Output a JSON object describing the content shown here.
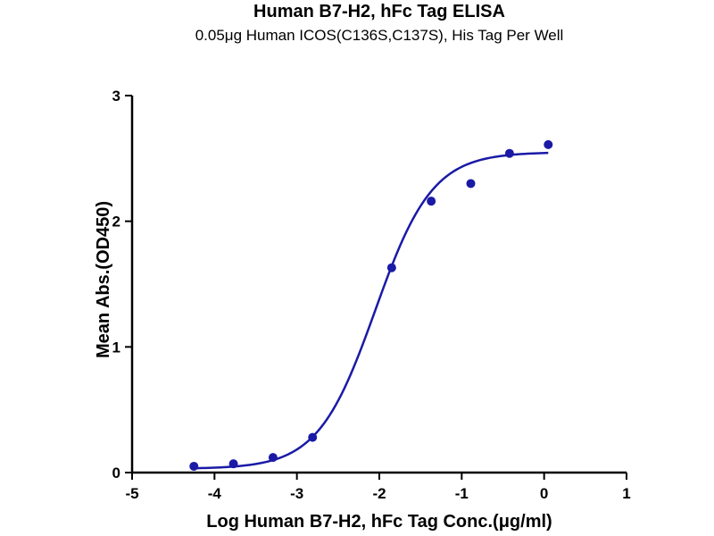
{
  "chart_data": {
    "type": "scatter",
    "title": "Human B7-H2, hFc Tag ELISA",
    "subtitle": "0.05μg Human ICOS(C136S,C137S), His Tag Per Well",
    "xlabel": "Log Human B7-H2, hFc Tag Conc.(μg/ml)",
    "ylabel": "Mean Abs.(OD450)",
    "xlim": [
      -5,
      1
    ],
    "ylim": [
      0,
      3
    ],
    "xticks": [
      "-5",
      "-4",
      "-3",
      "-2",
      "-1",
      "0",
      "1"
    ],
    "yticks": [
      "0",
      "1",
      "2",
      "3"
    ],
    "grid": false,
    "color": "#1a1aa6",
    "series": [
      {
        "points": [
          {
            "x": -4.25,
            "y": 0.05
          },
          {
            "x": -3.77,
            "y": 0.07
          },
          {
            "x": -3.29,
            "y": 0.12
          },
          {
            "x": -2.81,
            "y": 0.28
          },
          {
            "x": -1.85,
            "y": 1.63
          },
          {
            "x": -1.37,
            "y": 2.16
          },
          {
            "x": -0.89,
            "y": 2.3
          },
          {
            "x": -0.42,
            "y": 2.54
          },
          {
            "x": 0.05,
            "y": 2.61
          }
        ],
        "fit": {
          "model": "four-parameter logistic",
          "bottom": 0.03,
          "top": 2.55,
          "log_ec50": -2.05,
          "hill_slope": 1.25,
          "x_range": [
            -4.25,
            0.05
          ]
        }
      }
    ]
  }
}
